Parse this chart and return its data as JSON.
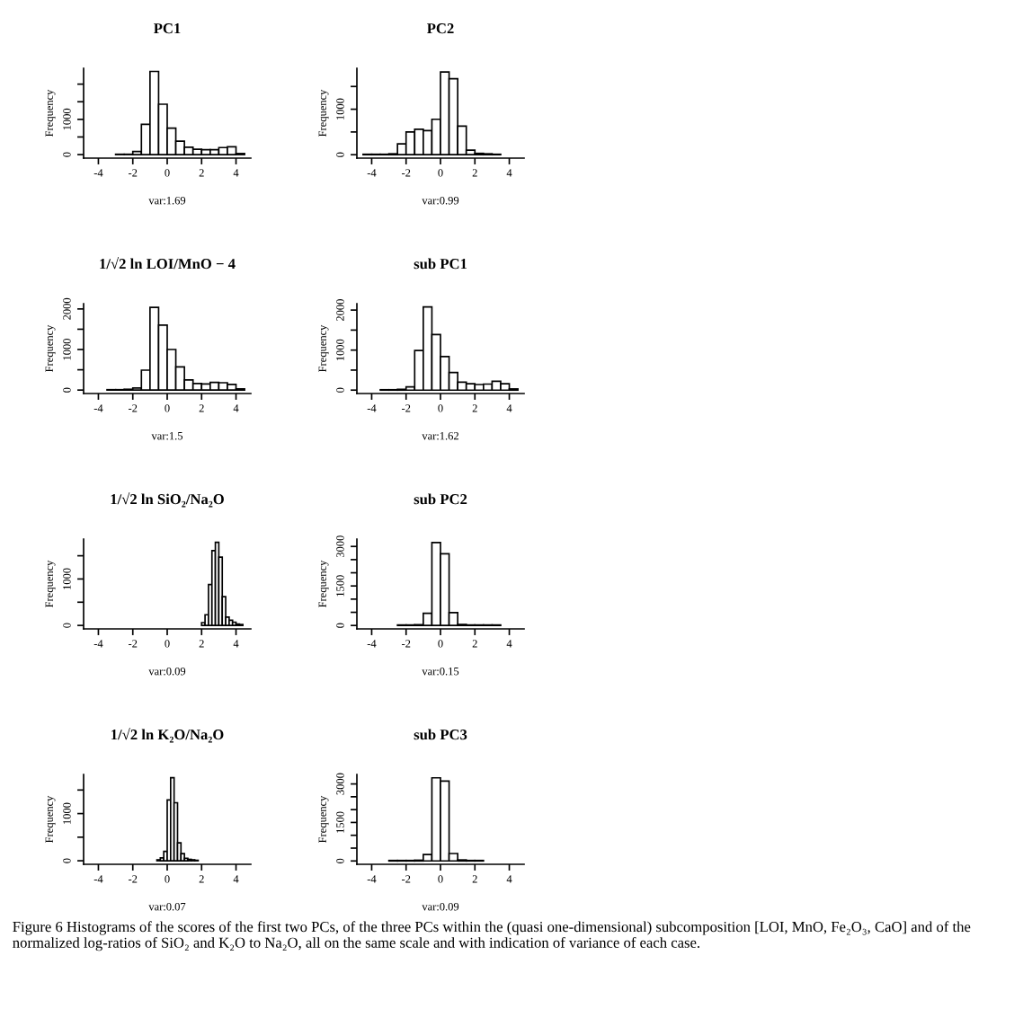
{
  "chart_data": [
    {
      "type": "histogram",
      "title": "PC1",
      "xlabel": "var:1.69",
      "ylabel": "Frequency",
      "color": "#ffffff",
      "xlim": [
        -4.86,
        4.86
      ],
      "xticks": [
        -4,
        -2,
        0,
        2,
        4
      ],
      "ylim": [
        -100,
        2450
      ],
      "yticks": [
        0,
        {
          "value": 500,
          "label": null
        },
        1000,
        {
          "value": 1500,
          "label": null
        },
        {
          "value": 2000,
          "label": null
        }
      ],
      "bins": [
        -3,
        -2.5,
        -2,
        -1.5,
        -1,
        -0.5,
        0,
        0.5,
        1,
        1.5,
        2,
        2.5,
        3,
        3.5,
        4,
        4.5
      ],
      "values": [
        10,
        10,
        90,
        860,
        2360,
        1430,
        750,
        380,
        210,
        150,
        140,
        140,
        200,
        220,
        30
      ]
    },
    {
      "type": "histogram",
      "title": "PC2",
      "xlabel": "var:0.99",
      "ylabel": "Frequency",
      "color": "#ffffff",
      "xlim": [
        -4.86,
        4.86
      ],
      "xticks": [
        -4,
        -2,
        0,
        2,
        4
      ],
      "ylim": [
        -75,
        1900
      ],
      "yticks": [
        0,
        {
          "value": 500,
          "label": null
        },
        1000,
        {
          "value": 1500,
          "label": null
        }
      ],
      "bins": [
        -4.5,
        -4,
        -3.5,
        -3,
        -2.5,
        -2,
        -1.5,
        -1,
        -0.5,
        0,
        0.5,
        1,
        1.5,
        2,
        2.5,
        3,
        3.5
      ],
      "values": [
        10,
        10,
        10,
        20,
        240,
        500,
        560,
        530,
        780,
        1820,
        1670,
        630,
        100,
        30,
        20,
        10
      ]
    },
    {
      "type": "histogram",
      "title": "1/√2 ln LOI/MnO − 4",
      "xlabel": "var:1.5",
      "ylabel": "Frequency",
      "color": "#ffffff",
      "xlim": [
        -4.86,
        4.86
      ],
      "xticks": [
        -4,
        -2,
        0,
        2,
        4
      ],
      "ylim": [
        -85,
        2130
      ],
      "yticks": [
        0,
        {
          "value": 500,
          "label": null
        },
        1000,
        {
          "value": 1500,
          "label": null
        },
        2000
      ],
      "bins": [
        -3.5,
        -3,
        -2.5,
        -2,
        -1.5,
        -1,
        -0.5,
        0,
        0.5,
        1,
        1.5,
        2,
        2.5,
        3,
        3.5,
        4,
        4.5
      ],
      "values": [
        10,
        10,
        20,
        50,
        490,
        2040,
        1600,
        1000,
        570,
        250,
        160,
        150,
        190,
        180,
        140,
        30
      ]
    },
    {
      "type": "histogram",
      "title": "sub PC1",
      "xlabel": "var:1.62",
      "ylabel": "Frequency",
      "color": "#ffffff",
      "xlim": [
        -4.86,
        4.86
      ],
      "xticks": [
        -4,
        -2,
        0,
        2,
        4
      ],
      "ylim": [
        -85,
        2160
      ],
      "yticks": [
        0,
        {
          "value": 500,
          "label": null
        },
        1000,
        {
          "value": 1500,
          "label": null
        },
        2000
      ],
      "bins": [
        -3.5,
        -3,
        -2.5,
        -2,
        -1.5,
        -1,
        -0.5,
        0,
        0.5,
        1,
        1.5,
        2,
        2.5,
        3,
        3.5,
        4,
        4.5
      ],
      "values": [
        10,
        10,
        20,
        80,
        990,
        2080,
        1390,
        840,
        440,
        200,
        160,
        140,
        150,
        220,
        160,
        30
      ]
    },
    {
      "type": "histogram",
      "title": "1/√2 ln SiO₂/Na₂O",
      "xlabel": "var:0.09",
      "ylabel": "Frequency",
      "color": "#ffffff",
      "xlim": [
        -4.86,
        4.86
      ],
      "xticks": [
        -4,
        -2,
        0,
        2,
        4
      ],
      "ylim": [
        -75,
        1860
      ],
      "yticks": [
        0,
        {
          "value": 500,
          "label": null
        },
        1000,
        {
          "value": 1500,
          "label": null
        }
      ],
      "bins": [
        2.0,
        2.2,
        2.4,
        2.6,
        2.8,
        3.0,
        3.2,
        3.4,
        3.6,
        3.8,
        4.0,
        4.2,
        4.4
      ],
      "values": [
        60,
        230,
        880,
        1610,
        1790,
        1470,
        620,
        180,
        110,
        70,
        30,
        20
      ]
    },
    {
      "type": "histogram",
      "title": "sub PC2",
      "xlabel": "var:0.15",
      "ylabel": "Frequency",
      "color": "#ffffff",
      "xlim": [
        -4.86,
        4.86
      ],
      "xticks": [
        -4,
        -2,
        0,
        2,
        4
      ],
      "ylim": [
        -130,
        3280
      ],
      "yticks": [
        0,
        {
          "value": 500,
          "label": null
        },
        {
          "value": 1000,
          "label": null
        },
        1500,
        {
          "value": 2000,
          "label": null
        },
        {
          "value": 2500,
          "label": null
        },
        3000
      ],
      "bins": [
        -2.5,
        -2,
        -1.5,
        -1,
        -0.5,
        0,
        0.5,
        1,
        1.5,
        2,
        2.5,
        3,
        3.5
      ],
      "values": [
        20,
        20,
        30,
        460,
        3150,
        2720,
        490,
        40,
        20,
        20,
        20,
        20
      ]
    },
    {
      "type": "histogram",
      "title": "1/√2 ln K₂O/Na₂O",
      "xlabel": "var:0.07",
      "ylabel": "Frequency",
      "color": "#ffffff",
      "xlim": [
        -4.86,
        4.86
      ],
      "xticks": [
        -4,
        -2,
        0,
        2,
        4
      ],
      "ylim": [
        -75,
        1830
      ],
      "yticks": [
        0,
        {
          "value": 500,
          "label": null
        },
        1000,
        {
          "value": 1500,
          "label": null
        }
      ],
      "bins": [
        -0.6,
        -0.4,
        -0.2,
        0,
        0.2,
        0.4,
        0.6,
        0.8,
        1.0,
        1.2,
        1.4,
        1.6,
        1.8
      ],
      "values": [
        20,
        60,
        200,
        1290,
        1760,
        1230,
        380,
        150,
        50,
        30,
        20,
        10
      ]
    },
    {
      "type": "histogram",
      "title": "sub PC3",
      "xlabel": "var:0.09",
      "ylabel": "Frequency",
      "color": "#ffffff",
      "xlim": [
        -4.86,
        4.86
      ],
      "xticks": [
        -4,
        -2,
        0,
        2,
        4
      ],
      "ylim": [
        -130,
        3370
      ],
      "yticks": [
        0,
        {
          "value": 500,
          "label": null
        },
        {
          "value": 1000,
          "label": null
        },
        1500,
        {
          "value": 2000,
          "label": null
        },
        {
          "value": 2500,
          "label": null
        },
        3000
      ],
      "bins": [
        -3,
        -2.5,
        -2,
        -1.5,
        -1,
        -0.5,
        0,
        0.5,
        1,
        1.5,
        2,
        2.5
      ],
      "values": [
        20,
        20,
        20,
        30,
        250,
        3240,
        3110,
        290,
        40,
        20,
        20
      ],
      "annotations": [
        "Figure 6 Histograms of the scores of the first two PCs, of the three PCs within the (quasi one-dimensional) subcomposition [LOI, MnO, Fe₂O₃, CaO] and of the normalized log-ratios of SiO₂ and K₂O to Na₂O, all on the same scale and with indication of variance of each case."
      ]
    }
  ]
}
